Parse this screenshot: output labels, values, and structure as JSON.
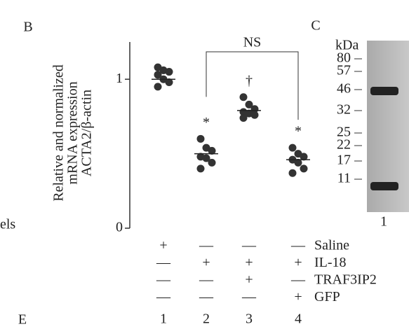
{
  "chart_data": {
    "type": "dot",
    "panel_label": "B",
    "y_label": [
      "Relative and normalized",
      "mRNA expression",
      "ACTA2/β-actin"
    ],
    "categories": [
      "1",
      "2",
      "3",
      "4"
    ],
    "values": [
      [
        1.08,
        1.06,
        1.05,
        1.03,
        1.0,
        0.98,
        0.95
      ],
      [
        0.6,
        0.54,
        0.52,
        0.48,
        0.47,
        0.44,
        0.4
      ],
      [
        0.88,
        0.83,
        0.8,
        0.78,
        0.77,
        0.76,
        0.74
      ],
      [
        0.54,
        0.5,
        0.48,
        0.46,
        0.44,
        0.4,
        0.37
      ]
    ],
    "means": [
      1.0,
      0.5,
      0.79,
      0.46
    ],
    "color": "#333333",
    "ylim": [
      0,
      1.25
    ],
    "yticks": [
      0,
      1
    ],
    "annotations": [
      "*",
      "†",
      "*"
    ],
    "bracket_label": "NS",
    "treatments": [
      {
        "name": "Saline",
        "marks": [
          "+",
          "—",
          "—",
          "—"
        ]
      },
      {
        "name": "IL-18",
        "marks": [
          "—",
          "+",
          "+",
          "+"
        ]
      },
      {
        "name": "TRAF3IP2",
        "marks": [
          "—",
          "—",
          "+",
          "—"
        ]
      },
      {
        "name": "GFP",
        "marks": [
          "—",
          "—",
          "—",
          "+"
        ]
      }
    ]
  },
  "side_text": "els",
  "next_panel": "E",
  "gel": {
    "panel_label": "C",
    "unit": "kDa",
    "markers": [
      "80",
      "57",
      "46",
      "32",
      "25",
      "22",
      "17",
      "11"
    ],
    "lane": "1"
  }
}
